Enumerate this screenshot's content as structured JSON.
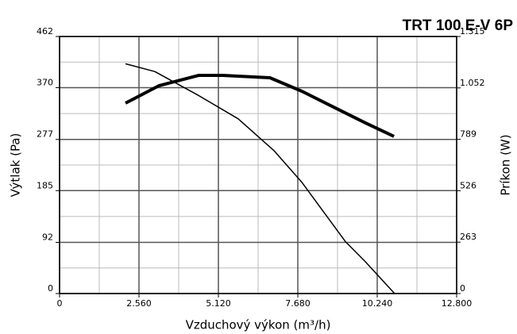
{
  "chart_data": {
    "type": "line",
    "title": "TRT 100 E-V 6P",
    "x_label": "Vzduchový výkon (m³/h)",
    "y_label": "Výtlak (Pa)",
    "y2_label": "Príkon (W)",
    "xlim": [
      0,
      12800
    ],
    "xticks": [
      0,
      {
        "value": 2560,
        "label": "2.560"
      },
      {
        "value": 5120,
        "label": "5.120"
      },
      {
        "value": 7680,
        "label": "7.680"
      },
      {
        "value": 10240,
        "label": "10.240"
      },
      {
        "value": 12800,
        "label": "12.800"
      }
    ],
    "ylim": [
      0,
      462
    ],
    "yticks": [
      0,
      92,
      185,
      277,
      370,
      462
    ],
    "y2lim": [
      0,
      1315
    ],
    "y2ticks": [
      0,
      263,
      526,
      789,
      {
        "value": 1052,
        "label": "1.052"
      },
      {
        "value": 1315,
        "label": "1.315"
      }
    ],
    "grid": true,
    "series": [
      {
        "color": "#000000",
        "width": 1.5,
        "x": [
          2125,
          3070,
          4480,
          5760,
          6910,
          7810,
          9220,
          9860,
          10800
        ],
        "values": [
          413,
          399,
          356,
          314,
          257,
          200,
          93,
          57,
          0
        ]
      },
      {
        "color": "#000000",
        "width": 4,
        "axis": "y2",
        "x": [
          2125,
          3200,
          4480,
          5250,
          6780,
          7810,
          8830,
          9860,
          10780
        ],
        "values": [
          974,
          1063,
          1116,
          1116,
          1104,
          1035,
          954,
          873,
          804
        ]
      }
    ]
  }
}
